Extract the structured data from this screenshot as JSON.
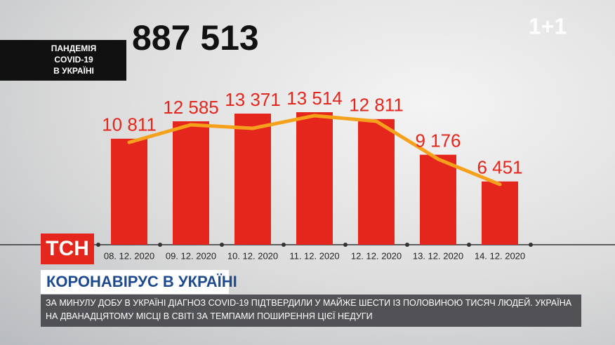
{
  "header": {
    "total": "887 513",
    "tag": [
      "ПАНДЕМІЯ",
      "COVID-19",
      "В УКРАЇНІ"
    ],
    "channel": "1+1"
  },
  "chart_data": {
    "type": "bar",
    "categories": [
      "08. 12. 2020",
      "09. 12. 2020",
      "10. 12. 2020",
      "11. 12. 2020",
      "12. 12. 2020",
      "13. 12. 2020",
      "14. 12. 2020"
    ],
    "series": [
      {
        "type": "bar",
        "color": "#e4261d",
        "values": [
          10811,
          12585,
          13371,
          13514,
          12811,
          9176,
          6451
        ],
        "value_labels": [
          "10 811",
          "12 585",
          "13 371",
          "13 514",
          "12 811",
          "9 176",
          "6 451"
        ]
      },
      {
        "type": "line",
        "color": "#f5a11c",
        "values": [
          10440,
          12230,
          11870,
          13160,
          12590,
          8730,
          6150
        ]
      }
    ]
  },
  "banner": {
    "logo": "ТСН",
    "headline": "КОРОНАВІРУС В УКРАЇНІ",
    "ticker": "ЗА МИНУЛУ ДОБУ В УКРАЇНІ ДІАГНОЗ COVID-19 ПІДТВЕРДИЛИ У МАЙЖЕ ШЕСТИ ІЗ ПОЛОВИНОЮ ТИСЯЧ ЛЮДЕЙ. УКРАЇНА НА ДВАНАДЦЯТОМУ МІСЦІ В СВІТІ ЗА ТЕМПАМИ ПОШИРЕННЯ ЦІЄЇ НЕДУГИ"
  }
}
